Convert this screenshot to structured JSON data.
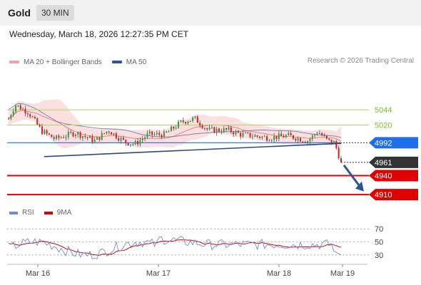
{
  "header": {
    "title": "Gold",
    "timeframe": "30 MIN"
  },
  "datetime": "Wednesday, March 18, 2026 12:27:35 PM CET",
  "legend": [
    {
      "label": "MA 20 + Bollinger Bands",
      "color": "#f08080"
    },
    {
      "label": "MA 50",
      "color": "#2f5597"
    }
  ],
  "copyright": "Research © 2026 Trading Central",
  "rsi_legend": [
    {
      "label": "RSI",
      "color": "#6a8fd8"
    },
    {
      "label": "9MA",
      "color": "#e00000"
    }
  ],
  "chart_data": {
    "type": "candlestick",
    "ylim": [
      4900,
      5105
    ],
    "x_ticks": [
      "Mar 16",
      "Mar 17",
      "Mar 18",
      "Mar 19"
    ],
    "levels": [
      {
        "value": 5044,
        "label": "5044",
        "kind": "resistance",
        "color": "#7cbf2a"
      },
      {
        "value": 5020,
        "label": "5020",
        "kind": "resistance",
        "color": "#7cbf2a"
      },
      {
        "value": 4992,
        "label": "4992",
        "kind": "pivot",
        "color": "#1f6feb"
      },
      {
        "value": 4961,
        "label": "4961",
        "kind": "last-price",
        "color": "#333333"
      },
      {
        "value": 4940,
        "label": "4940",
        "kind": "support",
        "color": "#e00000"
      },
      {
        "value": 4910,
        "label": "4910",
        "kind": "support",
        "color": "#e00000"
      }
    ],
    "trendline": {
      "from": {
        "t": 0.107,
        "price": 4970
      },
      "to": {
        "t": 1.0,
        "price": 4991
      }
    },
    "forecast_arrow": {
      "from_price": 4961,
      "to_price": 4915
    },
    "rsi": {
      "ylim": [
        20,
        80
      ],
      "ticks": [
        70,
        50,
        30
      ]
    }
  }
}
